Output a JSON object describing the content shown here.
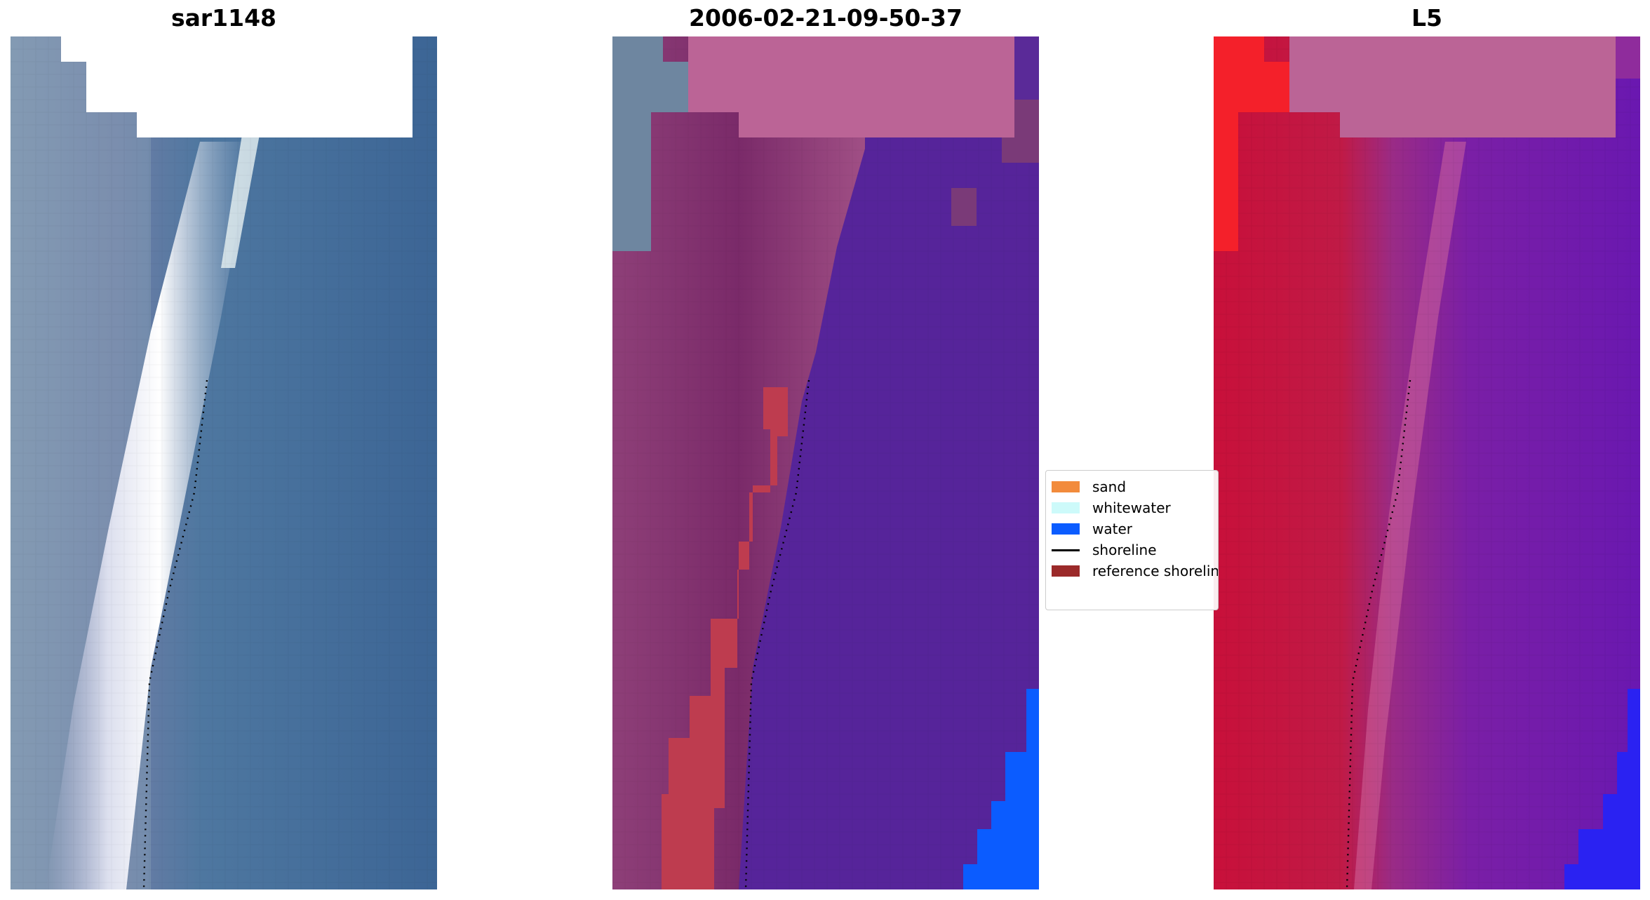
{
  "panels": [
    {
      "title": "sar1148",
      "image": "satellite-rgb"
    },
    {
      "title": "2006-02-21-09-50-37",
      "image": "classified-overlay"
    },
    {
      "title": "L5",
      "image": "false-color-band"
    }
  ],
  "legend": {
    "items": [
      {
        "label": "sand",
        "color": "#f28b3c",
        "kind": "patch"
      },
      {
        "label": "whitewater",
        "color": "#cdfafa",
        "kind": "patch"
      },
      {
        "label": "water",
        "color": "#0b5cff",
        "kind": "patch"
      },
      {
        "label": "shoreline",
        "color": "#000000",
        "kind": "line"
      },
      {
        "label": "reference shoreline",
        "color": "#9b2a2a",
        "kind": "patch"
      }
    ]
  }
}
